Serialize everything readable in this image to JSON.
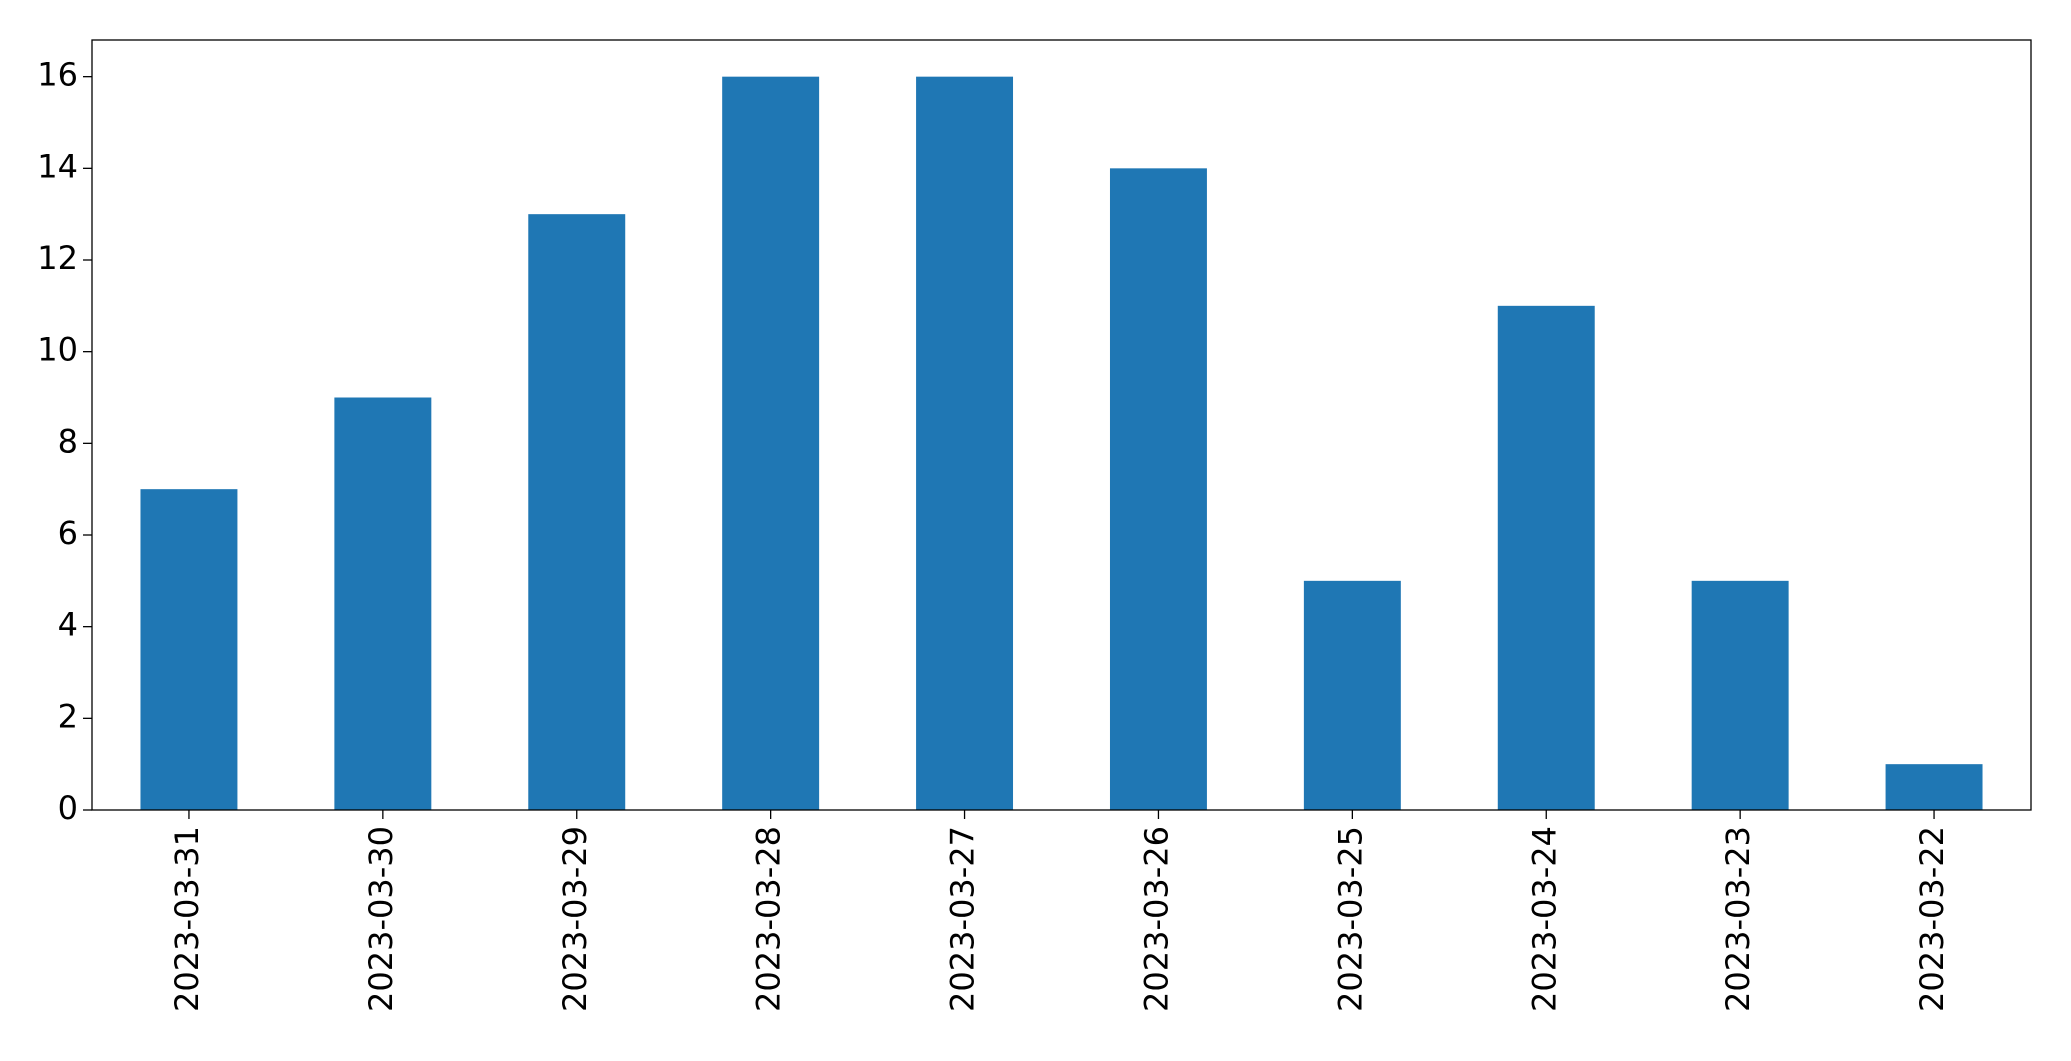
{
  "chart_data": {
    "type": "bar",
    "categories": [
      "2023-03-31",
      "2023-03-30",
      "2023-03-29",
      "2023-03-28",
      "2023-03-27",
      "2023-03-26",
      "2023-03-25",
      "2023-03-24",
      "2023-03-23",
      "2023-03-22"
    ],
    "values": [
      7,
      9,
      13,
      16,
      16,
      14,
      5,
      11,
      5,
      1
    ],
    "color": "#1f77b4",
    "ylim": [
      0,
      16.8
    ],
    "yticks": [
      0,
      2,
      4,
      6,
      8,
      10,
      12,
      14,
      16
    ],
    "grid": false
  }
}
